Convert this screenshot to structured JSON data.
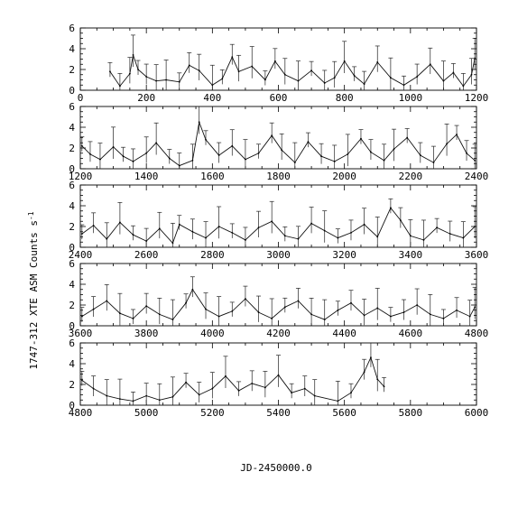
{
  "chart_data": [
    {
      "type": "line",
      "panel": 1,
      "xlim": [
        0,
        1200
      ],
      "ylim": [
        0,
        6
      ],
      "xticks": [
        "0",
        "200",
        "400",
        "600",
        "800",
        "1000",
        "1200"
      ],
      "yticks": [
        "0",
        "2",
        "4",
        "6"
      ],
      "series": [
        {
          "x": [
            90,
            120,
            150,
            160,
            175,
            200,
            230,
            260,
            300,
            330,
            360,
            400,
            430,
            460,
            480,
            520,
            560,
            590,
            620,
            660,
            700,
            740,
            770,
            800,
            830,
            860,
            900,
            940,
            980,
            1020,
            1060,
            1100,
            1130,
            1160,
            1185,
            1195
          ],
          "y": [
            1.8,
            0.4,
            1.6,
            3.4,
            2.0,
            1.3,
            0.9,
            1.0,
            0.8,
            2.4,
            1.9,
            0.5,
            1.1,
            3.2,
            1.8,
            2.3,
            1.0,
            2.8,
            1.5,
            0.9,
            1.9,
            0.7,
            1.2,
            2.8,
            1.4,
            0.6,
            2.7,
            1.2,
            0.5,
            1.3,
            2.5,
            0.9,
            1.7,
            0.4,
            1.5,
            3.1
          ]
        }
      ]
    },
    {
      "type": "line",
      "panel": 2,
      "xlim": [
        1200,
        2400
      ],
      "ylim": [
        0,
        6
      ],
      "xticks": [
        "1200",
        "1400",
        "1600",
        "1800",
        "2000",
        "2200",
        "2400"
      ],
      "yticks": [
        "0",
        "2",
        "4",
        "6"
      ],
      "series": [
        {
          "x": [
            1205,
            1230,
            1260,
            1300,
            1330,
            1360,
            1400,
            1430,
            1470,
            1500,
            1540,
            1560,
            1580,
            1620,
            1660,
            1700,
            1740,
            1780,
            1810,
            1850,
            1890,
            1930,
            1970,
            2010,
            2050,
            2080,
            2120,
            2150,
            2190,
            2230,
            2270,
            2310,
            2340,
            2370,
            2395
          ],
          "y": [
            2.2,
            1.4,
            0.9,
            2.1,
            1.2,
            0.7,
            1.5,
            2.5,
            1.0,
            0.3,
            0.8,
            4.5,
            2.8,
            1.3,
            2.2,
            0.9,
            1.5,
            3.2,
            1.8,
            0.6,
            2.6,
            1.2,
            0.7,
            1.4,
            2.9,
            1.6,
            0.8,
            1.9,
            3.0,
            1.3,
            0.6,
            2.4,
            3.3,
            1.5,
            0.8
          ]
        }
      ]
    },
    {
      "type": "line",
      "panel": 3,
      "xlim": [
        2400,
        3600
      ],
      "ylim": [
        0,
        6
      ],
      "xticks": [
        "2400",
        "2600",
        "2800",
        "3000",
        "3200",
        "3400",
        "3600"
      ],
      "yticks": [
        "0",
        "2",
        "4",
        "6"
      ],
      "series": [
        {
          "x": [
            2405,
            2440,
            2480,
            2520,
            2560,
            2600,
            2640,
            2680,
            2700,
            2740,
            2780,
            2820,
            2860,
            2900,
            2940,
            2980,
            3020,
            3060,
            3100,
            3140,
            3180,
            3220,
            3260,
            3300,
            3340,
            3370,
            3400,
            3440,
            3480,
            3520,
            3560,
            3595
          ],
          "y": [
            1.3,
            2.1,
            0.8,
            2.4,
            1.2,
            0.6,
            1.8,
            0.4,
            2.2,
            1.5,
            0.9,
            2.0,
            1.4,
            0.7,
            1.9,
            2.5,
            1.1,
            0.8,
            2.3,
            1.6,
            0.9,
            1.4,
            2.2,
            1.0,
            3.8,
            2.6,
            1.1,
            0.7,
            1.9,
            1.3,
            0.9,
            2.0
          ]
        }
      ]
    },
    {
      "type": "line",
      "panel": 4,
      "xlim": [
        3600,
        4800
      ],
      "ylim": [
        0,
        6
      ],
      "xticks": [
        "3600",
        "3800",
        "4000",
        "4200",
        "4400",
        "4600",
        "4800"
      ],
      "yticks": [
        "0",
        "2",
        "4",
        "6"
      ],
      "series": [
        {
          "x": [
            3605,
            3640,
            3680,
            3720,
            3760,
            3800,
            3840,
            3880,
            3920,
            3940,
            3980,
            4020,
            4060,
            4100,
            4140,
            4180,
            4220,
            4260,
            4300,
            4340,
            4380,
            4420,
            4460,
            4500,
            4540,
            4580,
            4620,
            4660,
            4700,
            4740,
            4780,
            4795
          ],
          "y": [
            0.9,
            1.6,
            2.4,
            1.2,
            0.7,
            1.9,
            1.1,
            0.6,
            2.2,
            3.5,
            1.6,
            0.9,
            1.4,
            2.6,
            1.3,
            0.7,
            1.8,
            2.4,
            1.1,
            0.6,
            1.5,
            2.2,
            1.0,
            1.7,
            0.9,
            1.3,
            2.0,
            1.1,
            0.7,
            1.5,
            0.9,
            1.8
          ]
        }
      ]
    },
    {
      "type": "line",
      "panel": 5,
      "xlim": [
        4800,
        6000
      ],
      "ylim": [
        0,
        6
      ],
      "xticks": [
        "4800",
        "5000",
        "5200",
        "5400",
        "5600",
        "5800",
        "6000"
      ],
      "yticks": [
        "0",
        "2",
        "4",
        "6"
      ],
      "series": [
        {
          "x": [
            4805,
            4840,
            4880,
            4920,
            4960,
            5000,
            5040,
            5080,
            5120,
            5160,
            5200,
            5240,
            5280,
            5320,
            5360,
            5400,
            5440,
            5480,
            5510,
            5580,
            5620,
            5660,
            5680,
            5700,
            5720
          ],
          "y": [
            2.4,
            1.6,
            0.9,
            0.6,
            0.4,
            0.9,
            0.5,
            0.8,
            2.2,
            1.0,
            1.6,
            2.8,
            1.4,
            2.1,
            1.7,
            2.9,
            1.2,
            1.6,
            0.9,
            0.4,
            1.2,
            3.2,
            4.6,
            2.5,
            1.8
          ]
        }
      ]
    }
  ],
  "y_axis_label": "1747-312 XTE ASM Counts s",
  "y_axis_label_exp": "-1",
  "x_axis_label": "JD-2450000.0"
}
